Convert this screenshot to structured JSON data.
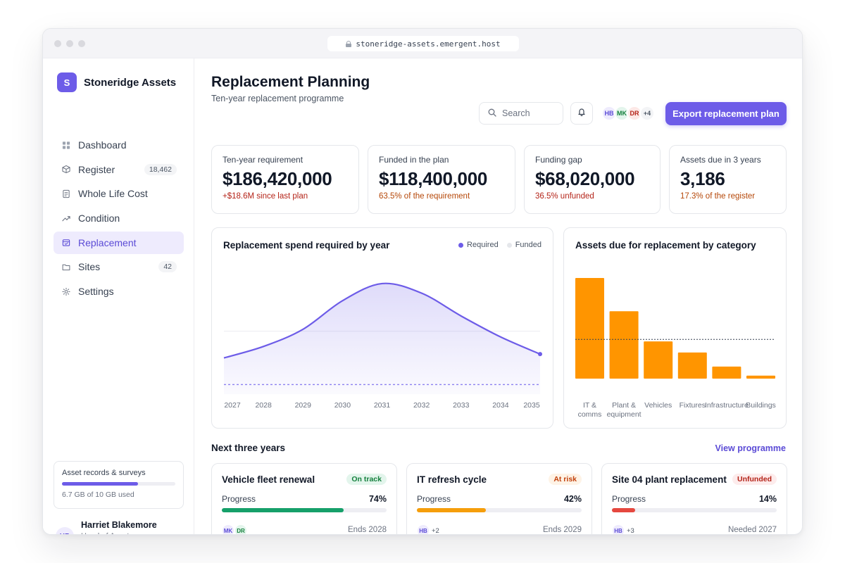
{
  "browser": {
    "url": "stoneridge-assets.emergent.host"
  },
  "brand": {
    "logo_letter": "S",
    "name": "Stoneridge Assets"
  },
  "nav": [
    {
      "label": "Dashboard",
      "icon": "grid-icon"
    },
    {
      "label": "Register",
      "icon": "box-icon",
      "count": "18,462"
    },
    {
      "label": "Whole Life Cost",
      "icon": "document-icon"
    },
    {
      "label": "Condition",
      "icon": "trend-icon"
    },
    {
      "label": "Replacement",
      "icon": "calendar-icon",
      "active": true
    },
    {
      "label": "Sites",
      "icon": "folder-icon",
      "count": "42"
    },
    {
      "label": "Settings",
      "icon": "gear-icon"
    }
  ],
  "storage": {
    "title": "Asset records & surveys",
    "used_fraction": 0.67,
    "label": "6.7 GB of 10 GB used"
  },
  "user": {
    "initials": "HB",
    "name": "Harriet Blakemore",
    "role": "Head of Asset Management"
  },
  "header": {
    "title": "Replacement Planning",
    "subtitle": "Ten-year replacement programme",
    "search_placeholder": "Search",
    "avatars": [
      {
        "initials": "HB",
        "bg": "#eeebfd",
        "fg": "#5b4bd6"
      },
      {
        "initials": "MK",
        "bg": "#e3f5ec",
        "fg": "#15803d"
      },
      {
        "initials": "DR",
        "bg": "#fde8e6",
        "fg": "#b42318"
      },
      {
        "initials": "+4",
        "bg": "#f3f4f6",
        "fg": "#4b5563"
      }
    ],
    "export_label": "Export replacement plan"
  },
  "kpis": [
    {
      "label": "Ten-year requirement",
      "value": "$186,420,000",
      "note": "+$18.6M since last plan",
      "note_color": "#b42318"
    },
    {
      "label": "Funded in the plan",
      "value": "$118,400,000",
      "note": "63.5% of the requirement",
      "note_color": "#b54708"
    },
    {
      "label": "Funding gap",
      "value": "$68,020,000",
      "note": "36.5% unfunded",
      "note_color": "#b42318"
    },
    {
      "label": "Assets due in 3 years",
      "value": "3,186",
      "note": "17.3% of the register",
      "note_color": "#b54708"
    }
  ],
  "line_panel": {
    "title": "Replacement spend required by year",
    "legend": [
      "Required",
      "Funded"
    ]
  },
  "bar_panel": {
    "title": "Assets due for replacement by category"
  },
  "chart_data": [
    {
      "type": "area",
      "title": "Replacement spend required by year",
      "x": [
        "2027",
        "2028",
        "2029",
        "2030",
        "2031",
        "2032",
        "2033",
        "2034",
        "2035"
      ],
      "series": [
        {
          "name": "Required",
          "values": [
            14,
            20,
            29,
            44,
            53,
            48,
            36,
            25,
            16
          ],
          "color": "#6d5ce8"
        },
        {
          "name": "Funded",
          "values": [
            0,
            0,
            0,
            0,
            0,
            0,
            0,
            0,
            0
          ],
          "color": "#e5e7eb"
        }
      ],
      "reference_line": 28,
      "baseline": 0,
      "ylim": [
        -5,
        60
      ],
      "grid": true
    },
    {
      "type": "bar",
      "title": "Assets due for replacement by category",
      "categories": [
        "IT & comms",
        "Plant & equipment",
        "Vehicles",
        "Fixtures",
        "Infrastructure",
        "Buildings"
      ],
      "values": [
        100,
        67,
        37,
        26,
        12,
        3
      ],
      "average_line": 39,
      "ylim": [
        0,
        100
      ],
      "color": "#ff9500"
    }
  ],
  "section": {
    "title": "Next three years",
    "link": "View programme"
  },
  "projects": [
    {
      "title": "Vehicle fleet renewal",
      "badge": "On track",
      "badge_bg": "#e3f5ec",
      "badge_fg": "#15803d",
      "progress_label": "Progress",
      "progress": 74,
      "progress_text": "74%",
      "bar_color": "#16a06a",
      "avatars": [
        {
          "initials": "MK",
          "bg": "#eeebfd",
          "fg": "#5b4bd6"
        },
        {
          "initials": "DR",
          "bg": "#e3f5ec",
          "fg": "#15803d"
        }
      ],
      "more": "",
      "date": "Ends 2028"
    },
    {
      "title": "IT refresh cycle",
      "badge": "At risk",
      "badge_bg": "#fef3e6",
      "badge_fg": "#c2410c",
      "progress_label": "Progress",
      "progress": 42,
      "progress_text": "42%",
      "bar_color": "#f59e0b",
      "avatars": [
        {
          "initials": "HB",
          "bg": "#eeebfd",
          "fg": "#5b4bd6"
        }
      ],
      "more": "+2",
      "date": "Ends 2029"
    },
    {
      "title": "Site 04 plant replacement",
      "badge": "Unfunded",
      "badge_bg": "#fdecec",
      "badge_fg": "#b42318",
      "progress_label": "Progress",
      "progress": 14,
      "progress_text": "14%",
      "bar_color": "#e5483f",
      "avatars": [
        {
          "initials": "HB",
          "bg": "#eeebfd",
          "fg": "#5b4bd6"
        }
      ],
      "more": "+3",
      "date": "Needed 2027"
    }
  ]
}
